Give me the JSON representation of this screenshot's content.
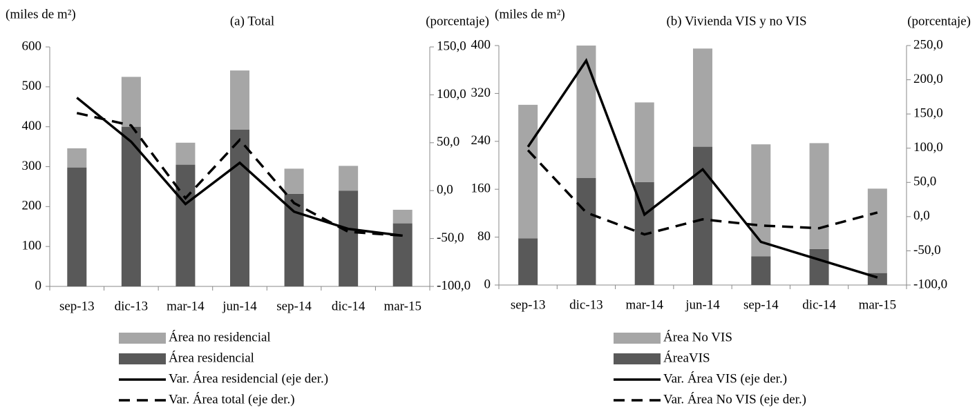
{
  "chart_data": [
    {
      "type": "bar",
      "title": "(a) Total",
      "y_label": "(miles de m²)",
      "y2_label": "(porcentaje)",
      "categories": [
        "sep-13",
        "dic-13",
        "mar-14",
        "jun-14",
        "sep-14",
        "dic-14",
        "mar-15"
      ],
      "series": [
        {
          "name": "Área no residencial",
          "type": "bar",
          "color": "#a6a6a6",
          "values": [
            48,
            125,
            55,
            148,
            63,
            62,
            34
          ]
        },
        {
          "name": "Área residencial",
          "type": "bar",
          "color": "#595959",
          "values": [
            298,
            400,
            305,
            393,
            232,
            240,
            158
          ]
        },
        {
          "name": "Var. Área residencial (eje der.)",
          "type": "line",
          "style": "solid",
          "color": "#000000",
          "axis": "y2",
          "values": [
            97,
            51,
            -14,
            29,
            -22,
            -40,
            -47
          ]
        },
        {
          "name": "Var. Área total (eje der.)",
          "type": "line",
          "style": "dashed",
          "color": "#000000",
          "axis": "y2",
          "values": [
            81,
            68,
            -8,
            53,
            -13,
            -43,
            -47
          ]
        }
      ],
      "ylim": [
        0,
        600
      ],
      "yticks": [
        0,
        100,
        200,
        300,
        400,
        500,
        600
      ],
      "y2lim": [
        -100,
        150
      ],
      "y2ticks": [
        {
          "value": -100,
          "label": "-100,0"
        },
        {
          "value": -50,
          "label": "-50,0"
        },
        {
          "value": 0,
          "label": "0,0"
        },
        {
          "value": 50,
          "label": "50,0"
        },
        {
          "value": 100,
          "label": "100,0"
        },
        {
          "value": 150,
          "label": "150,0"
        }
      ]
    },
    {
      "type": "bar",
      "title": "(b) Vivienda VIS  y no VIS",
      "y_label": "(miles de m²)",
      "y2_label": "(porcentaje)",
      "categories": [
        "sep-13",
        "dic-13",
        "mar-14",
        "jun-14",
        "sep-14",
        "dic-14",
        "mar-15"
      ],
      "series": [
        {
          "name": "Área No VIS",
          "type": "bar",
          "color": "#a6a6a6",
          "values": [
            223,
            221,
            133,
            164,
            187,
            177,
            141
          ]
        },
        {
          "name": "ÁreaVIS",
          "type": "bar",
          "color": "#595959",
          "values": [
            78,
            179,
            172,
            231,
            48,
            60,
            20
          ]
        },
        {
          "name": "Var. Área VIS (eje der.)",
          "type": "line",
          "style": "solid",
          "color": "#000000",
          "axis": "y2",
          "values": [
            102,
            228,
            3,
            69,
            -37,
            -63,
            -89
          ]
        },
        {
          "name": "Var. Área  No VIS (eje der.)",
          "type": "line",
          "style": "dashed",
          "color": "#000000",
          "axis": "y2",
          "values": [
            97,
            6,
            -26,
            -4,
            -13,
            -17,
            6
          ]
        }
      ],
      "ylim": [
        0,
        400
      ],
      "yticks": [
        0,
        80,
        160,
        240,
        320,
        400
      ],
      "y2lim": [
        -100,
        250
      ],
      "y2ticks": [
        {
          "value": -100,
          "label": "-100,0"
        },
        {
          "value": -50,
          "label": "-50,0"
        },
        {
          "value": 0,
          "label": "0,0"
        },
        {
          "value": 50,
          "label": "50,0"
        },
        {
          "value": 100,
          "label": "100,0"
        },
        {
          "value": 150,
          "label": "150,0"
        },
        {
          "value": 200,
          "label": "200,0"
        },
        {
          "value": 250,
          "label": "250,0"
        }
      ]
    }
  ]
}
